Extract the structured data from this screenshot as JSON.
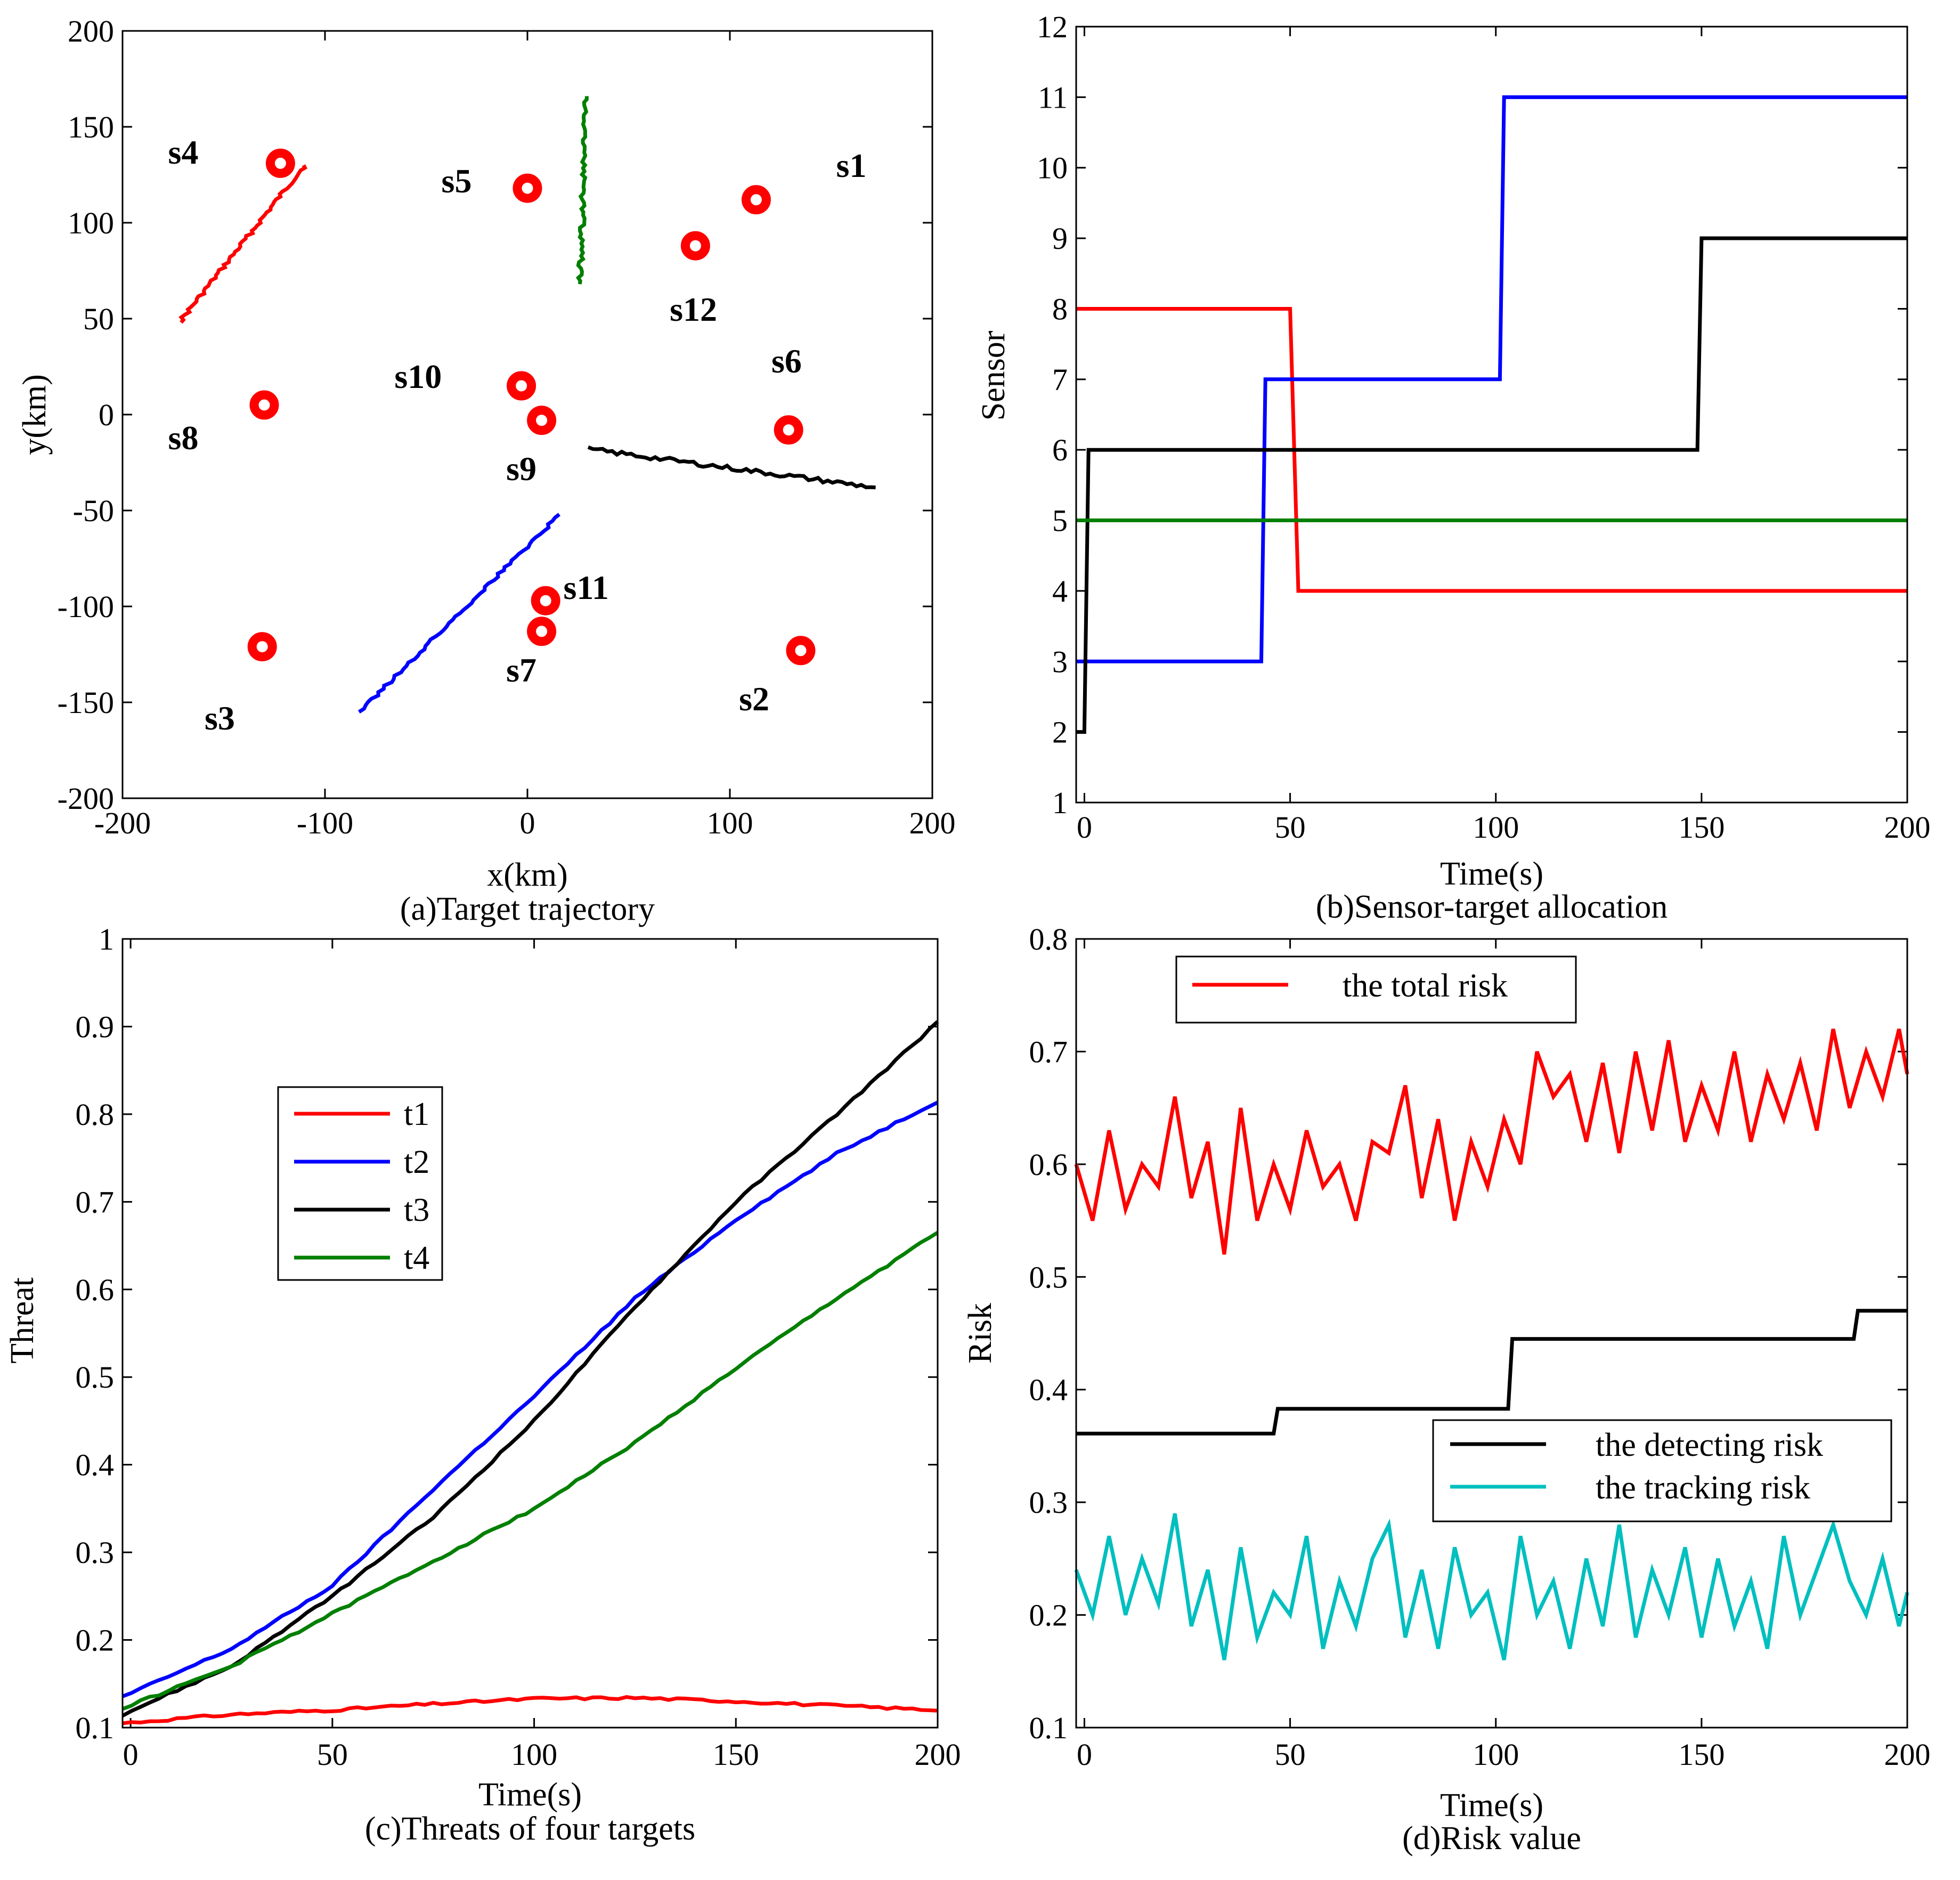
{
  "colors": {
    "red": "#ff0000",
    "blue": "#0000ff",
    "black": "#000000",
    "green": "#007f00",
    "cyan": "#00bfbf",
    "sensor": "#ff0000"
  },
  "chart_data": [
    {
      "id": "a",
      "type": "scatter",
      "caption": "(a)Target trajectory",
      "xlabel": "x(km)",
      "ylabel": "y(km)",
      "xlim": [
        -200,
        200
      ],
      "ylim": [
        -200,
        200
      ],
      "xticks": [
        "-200",
        "-100",
        "0",
        "100",
        "200"
      ],
      "yticks": [
        "-200",
        "-150",
        "-100",
        "-50",
        "0",
        "50",
        "100",
        "150",
        "200"
      ],
      "sensors": [
        {
          "name": "s1",
          "x": 113,
          "y": 112,
          "lx": 160,
          "ly": 130
        },
        {
          "name": "s2",
          "x": 135,
          "y": -123,
          "lx": 112,
          "ly": -148
        },
        {
          "name": "s3",
          "x": -131,
          "y": -121,
          "lx": -152,
          "ly": -158
        },
        {
          "name": "s4",
          "x": -122,
          "y": 131,
          "lx": -170,
          "ly": 137
        },
        {
          "name": "s5",
          "x": 0,
          "y": 118,
          "lx": -35,
          "ly": 122
        },
        {
          "name": "s6",
          "x": 129,
          "y": -8,
          "lx": 128,
          "ly": 28
        },
        {
          "name": "s7",
          "x": 7,
          "y": -113,
          "lx": -3,
          "ly": -133
        },
        {
          "name": "s8",
          "x": -130,
          "y": 5,
          "lx": -170,
          "ly": -12
        },
        {
          "name": "s9",
          "x": 7,
          "y": -3,
          "lx": -3,
          "ly": -28
        },
        {
          "name": "s10",
          "x": -3,
          "y": 15,
          "lx": -54,
          "ly": 20
        },
        {
          "name": "s11",
          "x": 9,
          "y": -97,
          "lx": 29,
          "ly": -90
        },
        {
          "name": "s12",
          "x": 83,
          "y": 88,
          "lx": 82,
          "ly": 55
        }
      ],
      "trajectories": [
        {
          "name": "t1",
          "color": "red",
          "start": [
            -172,
            48
          ],
          "end": [
            -110,
            130
          ]
        },
        {
          "name": "t2",
          "color": "blue",
          "start": [
            -83,
            -155
          ],
          "end": [
            16,
            -52
          ]
        },
        {
          "name": "t3",
          "color": "black",
          "start": [
            30,
            -18
          ],
          "end": [
            172,
            -38
          ]
        },
        {
          "name": "t4",
          "color": "green",
          "start": [
            26,
            68
          ],
          "end": [
            29,
            166
          ]
        }
      ]
    },
    {
      "id": "b",
      "type": "line",
      "caption": "(b)Sensor-target allocation",
      "xlabel": "Time(s)",
      "ylabel": "Sensor",
      "xlim": [
        -2,
        200
      ],
      "ylim": [
        1,
        12
      ],
      "xticks": [
        "0",
        "50",
        "100",
        "150",
        "200"
      ],
      "yticks": [
        "1",
        "2",
        "3",
        "4",
        "5",
        "6",
        "7",
        "8",
        "9",
        "10",
        "11",
        "12"
      ],
      "series": [
        {
          "name": "t1",
          "color": "red",
          "steps": [
            [
              -2,
              8
            ],
            [
              50,
              8
            ],
            [
              52,
              4
            ],
            [
              200,
              4
            ]
          ]
        },
        {
          "name": "t2",
          "color": "blue",
          "steps": [
            [
              -2,
              3
            ],
            [
              43,
              3
            ],
            [
              44,
              7
            ],
            [
              101,
              7
            ],
            [
              102,
              11
            ],
            [
              200,
              11
            ]
          ]
        },
        {
          "name": "t3",
          "color": "black",
          "steps": [
            [
              -2,
              2
            ],
            [
              0,
              2
            ],
            [
              1,
              6
            ],
            [
              149,
              6
            ],
            [
              150,
              9
            ],
            [
              200,
              9
            ]
          ]
        },
        {
          "name": "t4",
          "color": "green",
          "steps": [
            [
              -2,
              5
            ],
            [
              200,
              5
            ]
          ]
        }
      ]
    },
    {
      "id": "c",
      "type": "line",
      "caption": "(c)Threats of four targets",
      "xlabel": "Time(s)",
      "ylabel": "Threat",
      "xlim": [
        -2,
        200
      ],
      "ylim": [
        0.1,
        1
      ],
      "xticks": [
        "0",
        "50",
        "100",
        "150",
        "200"
      ],
      "yticks": [
        "0.1",
        "0.2",
        "0.3",
        "0.4",
        "0.5",
        "0.6",
        "0.7",
        "0.8",
        "0.9",
        "1"
      ],
      "legend": [
        "t1",
        "t2",
        "t3",
        "t4"
      ],
      "series": [
        {
          "name": "t1",
          "color": "red",
          "x": [
            -2,
            25,
            50,
            75,
            100,
            125,
            150,
            175,
            200
          ],
          "y": [
            0.105,
            0.115,
            0.12,
            0.127,
            0.133,
            0.134,
            0.13,
            0.125,
            0.12
          ]
        },
        {
          "name": "t2",
          "color": "blue",
          "x": [
            -2,
            25,
            50,
            75,
            100,
            125,
            150,
            175,
            200
          ],
          "y": [
            0.135,
            0.19,
            0.262,
            0.372,
            0.478,
            0.59,
            0.68,
            0.755,
            0.815
          ]
        },
        {
          "name": "t3",
          "color": "black",
          "x": [
            -2,
            25,
            50,
            75,
            100,
            125,
            150,
            175,
            200
          ],
          "y": [
            0.115,
            0.17,
            0.25,
            0.34,
            0.45,
            0.58,
            0.7,
            0.8,
            0.905
          ]
        },
        {
          "name": "t4",
          "color": "green",
          "x": [
            -2,
            25,
            50,
            75,
            100,
            125,
            150,
            175,
            200
          ],
          "y": [
            0.122,
            0.17,
            0.23,
            0.29,
            0.35,
            0.425,
            0.51,
            0.59,
            0.665
          ]
        }
      ]
    },
    {
      "id": "d",
      "type": "line",
      "caption": "(d)Risk value",
      "xlabel": "Time(s)",
      "ylabel": "Risk",
      "xlim": [
        -2,
        200
      ],
      "ylim": [
        0.1,
        0.8
      ],
      "xticks": [
        "0",
        "50",
        "100",
        "150",
        "200"
      ],
      "yticks": [
        "0.1",
        "0.2",
        "0.3",
        "0.4",
        "0.5",
        "0.6",
        "0.7",
        "0.8"
      ],
      "legend_top": [
        "the total risk"
      ],
      "legend_bottom": [
        "the detecting risk",
        "the tracking risk"
      ],
      "series": [
        {
          "name": "the total risk",
          "color": "red",
          "x": [
            -2,
            2,
            6,
            10,
            14,
            18,
            22,
            26,
            30,
            34,
            38,
            42,
            46,
            50,
            54,
            58,
            62,
            66,
            70,
            74,
            78,
            82,
            86,
            90,
            94,
            98,
            102,
            106,
            110,
            114,
            118,
            122,
            126,
            130,
            134,
            138,
            142,
            146,
            150,
            154,
            158,
            162,
            166,
            170,
            174,
            178,
            182,
            186,
            190,
            194,
            198,
            200
          ],
          "y": [
            0.6,
            0.55,
            0.63,
            0.56,
            0.6,
            0.58,
            0.66,
            0.57,
            0.62,
            0.52,
            0.65,
            0.55,
            0.6,
            0.56,
            0.63,
            0.58,
            0.6,
            0.55,
            0.62,
            0.61,
            0.67,
            0.57,
            0.64,
            0.55,
            0.62,
            0.58,
            0.64,
            0.6,
            0.7,
            0.66,
            0.68,
            0.62,
            0.69,
            0.61,
            0.7,
            0.63,
            0.71,
            0.62,
            0.67,
            0.63,
            0.7,
            0.62,
            0.68,
            0.64,
            0.69,
            0.63,
            0.72,
            0.65,
            0.7,
            0.66,
            0.72,
            0.68
          ]
        },
        {
          "name": "the detecting risk",
          "color": "black",
          "steps": [
            [
              -2,
              0.361
            ],
            [
              46,
              0.361
            ],
            [
              47,
              0.383
            ],
            [
              103,
              0.383
            ],
            [
              104,
              0.445
            ],
            [
              187,
              0.445
            ],
            [
              188,
              0.47
            ],
            [
              200,
              0.47
            ]
          ]
        },
        {
          "name": "the tracking risk",
          "color": "cyan",
          "x": [
            -2,
            2,
            6,
            10,
            14,
            18,
            22,
            26,
            30,
            34,
            38,
            42,
            46,
            50,
            54,
            58,
            62,
            66,
            70,
            74,
            78,
            82,
            86,
            90,
            94,
            98,
            102,
            106,
            110,
            114,
            118,
            122,
            126,
            130,
            134,
            138,
            142,
            146,
            150,
            154,
            158,
            162,
            166,
            170,
            174,
            178,
            182,
            186,
            190,
            194,
            198,
            200
          ],
          "y": [
            0.24,
            0.2,
            0.27,
            0.2,
            0.25,
            0.21,
            0.29,
            0.19,
            0.24,
            0.16,
            0.26,
            0.18,
            0.22,
            0.2,
            0.27,
            0.17,
            0.23,
            0.19,
            0.25,
            0.28,
            0.18,
            0.24,
            0.17,
            0.26,
            0.2,
            0.22,
            0.16,
            0.27,
            0.2,
            0.23,
            0.17,
            0.25,
            0.19,
            0.28,
            0.18,
            0.24,
            0.2,
            0.26,
            0.18,
            0.25,
            0.19,
            0.23,
            0.17,
            0.27,
            0.2,
            0.24,
            0.28,
            0.23,
            0.2,
            0.25,
            0.19,
            0.22
          ]
        }
      ]
    }
  ]
}
